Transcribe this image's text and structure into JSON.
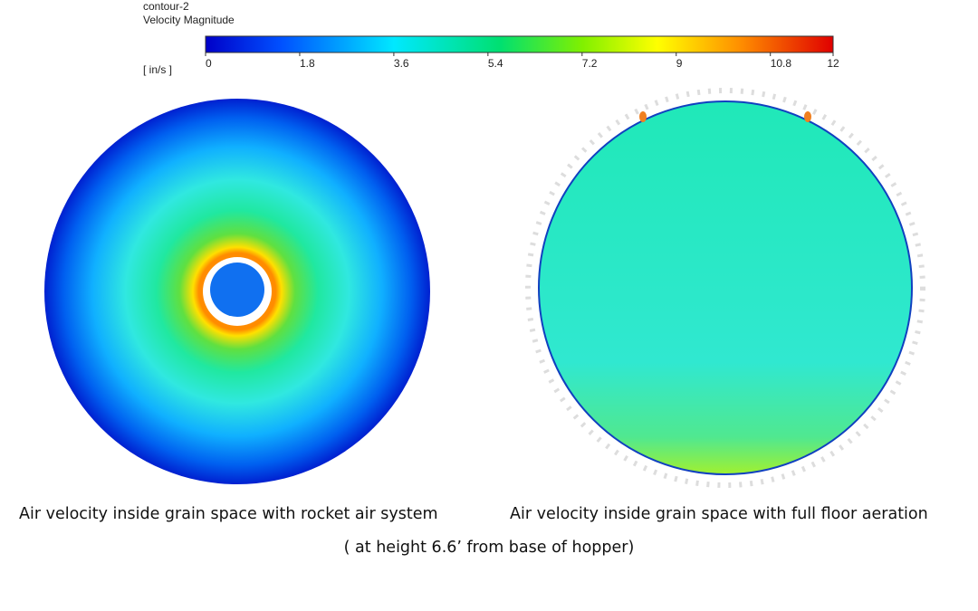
{
  "colorbar": {
    "title": "contour-2",
    "quantity": "Velocity Magnitude",
    "unit": "[ in/s ]",
    "ticks": [
      0,
      1.8,
      3.6,
      5.4,
      7.2,
      9,
      10.8,
      12
    ]
  },
  "captions": {
    "left": "Air velocity inside grain space with rocket air system",
    "right": "Air velocity inside grain space with full floor aeration",
    "note": "( at height 6.6’ from base of hopper)"
  }
}
